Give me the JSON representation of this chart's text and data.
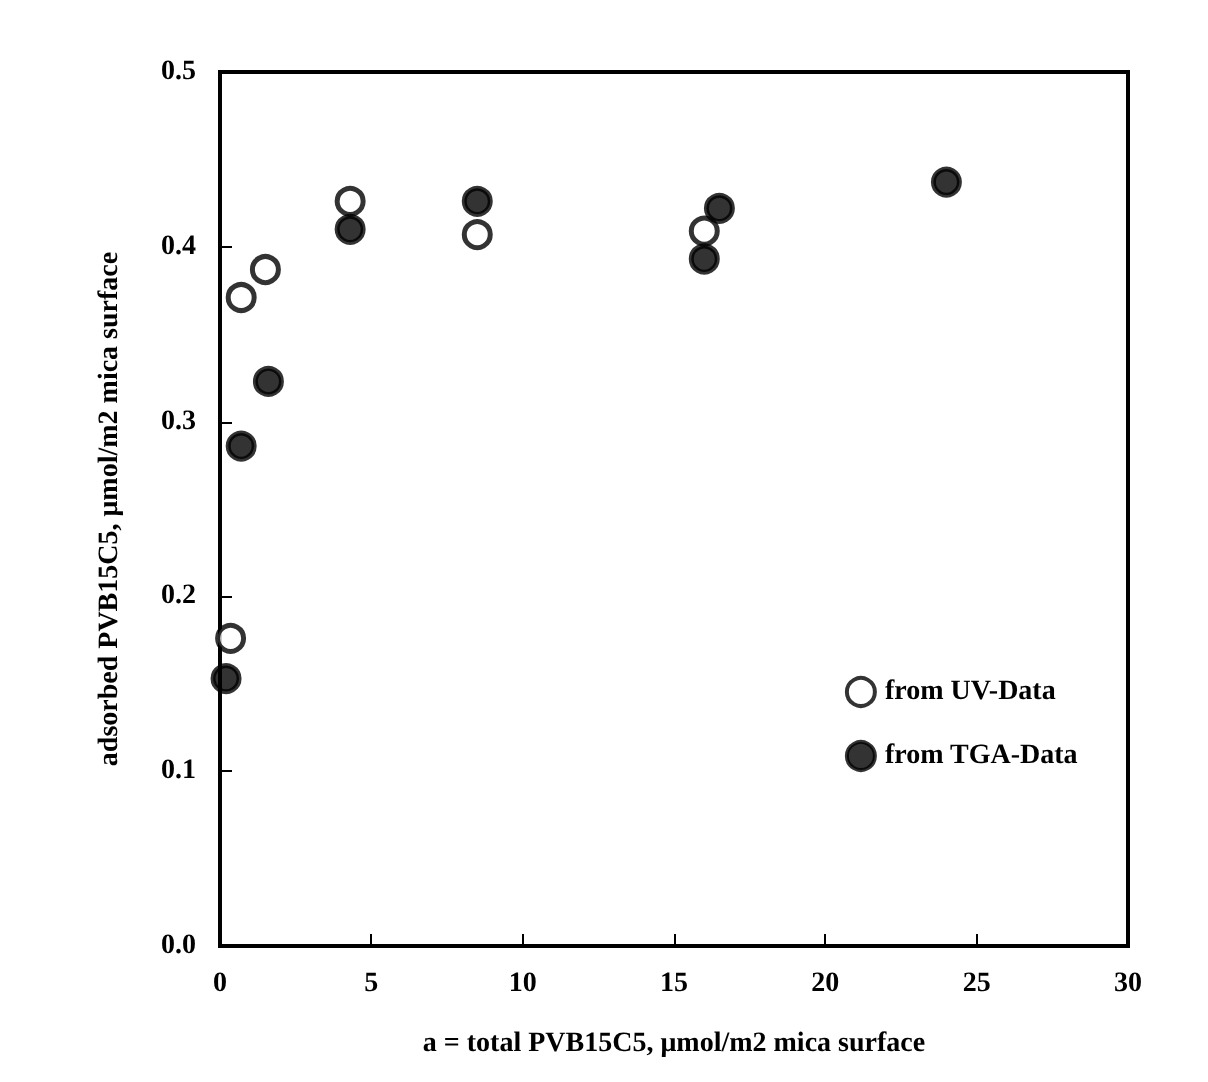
{
  "chart_data": {
    "type": "scatter",
    "xlabel": "a = total PVB15C5, μmol/m2 mica surface",
    "ylabel": "adsorbed PVB15C5, μmol/m2 mica surface",
    "series": [
      {
        "name": "from UV-Data",
        "color": "#ffffff",
        "x": [
          0.35,
          0.7,
          1.5,
          4.3,
          8.5,
          16.0
        ],
        "values": [
          0.176,
          0.371,
          0.387,
          0.426,
          0.407,
          0.409
        ]
      },
      {
        "name": "from TGA-Data",
        "color": "#000000",
        "x": [
          0.2,
          0.7,
          1.6,
          4.3,
          8.5,
          16.0,
          16.5,
          24.0
        ],
        "values": [
          0.153,
          0.286,
          0.323,
          0.41,
          0.426,
          0.393,
          0.422,
          0.437
        ]
      }
    ],
    "xlim": [
      0,
      30
    ],
    "xticks": [
      0,
      5,
      10,
      15,
      20,
      25,
      30
    ],
    "ylim": [
      0,
      0.5
    ],
    "yticks": [
      {
        "value": 0,
        "label": "0.0"
      },
      {
        "value": 0.1,
        "label": "0.1"
      },
      {
        "value": 0.2,
        "label": "0.2"
      },
      {
        "value": 0.3,
        "label": "0.3"
      },
      {
        "value": 0.4,
        "label": "0.4"
      },
      {
        "value": 0.5,
        "label": "0.5"
      }
    ],
    "grid": false,
    "legend": "bottom right",
    "marker": "circle"
  }
}
